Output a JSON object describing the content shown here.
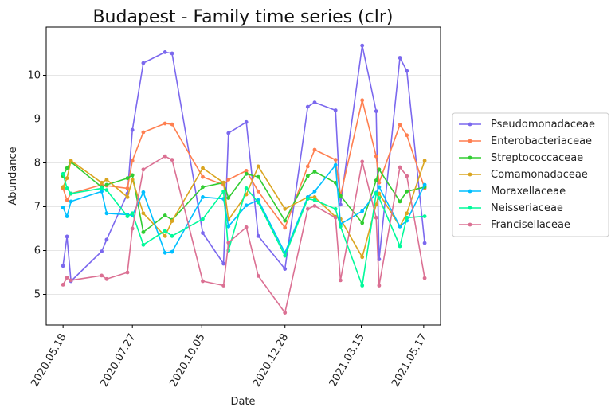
{
  "chart_data": {
    "type": "line",
    "title": "Budapest - Family time series (clr)",
    "xlabel": "Date",
    "ylabel": "Abundance",
    "x_type": "date",
    "xticks": [
      "2020.05.18",
      "2020.07.27",
      "2020.10.05",
      "2020.12.28",
      "2021.03.15",
      "2021.05.17"
    ],
    "yticks": [
      5,
      6,
      7,
      8,
      9,
      10
    ],
    "ylim": [
      4.3,
      11.1
    ],
    "xlim": [
      "2020-05-01",
      "2021-06-03"
    ],
    "grid": "horizontal",
    "legend_position": "right",
    "dates": [
      "2020-05-18",
      "2020-05-22",
      "2020-05-26",
      "2020-06-26",
      "2020-07-01",
      "2020-07-22",
      "2020-07-27",
      "2020-08-07",
      "2020-08-29",
      "2020-09-05",
      "2020-10-06",
      "2020-10-27",
      "2020-11-01",
      "2020-11-19",
      "2020-12-01",
      "2020-12-28",
      "2021-01-20",
      "2021-01-27",
      "2021-02-17",
      "2021-02-22",
      "2021-03-16",
      "2021-03-30",
      "2021-04-02",
      "2021-04-23",
      "2021-04-30",
      "2021-05-18"
    ],
    "series": [
      {
        "name": "Pseudomonadaceae",
        "color": "#7b68ee",
        "values": [
          5.65,
          6.32,
          5.3,
          5.98,
          6.25,
          7.3,
          8.75,
          10.28,
          10.53,
          10.5,
          6.4,
          5.7,
          8.68,
          8.93,
          6.33,
          5.58,
          9.28,
          9.38,
          9.2,
          7.05,
          10.68,
          9.18,
          5.8,
          10.4,
          10.1,
          6.17
        ]
      },
      {
        "name": "Enterobacteriaceae",
        "color": "#ff7f50",
        "values": [
          7.42,
          7.15,
          7.3,
          7.5,
          7.48,
          7.42,
          8.05,
          8.7,
          8.9,
          8.88,
          7.68,
          7.5,
          7.62,
          7.82,
          7.35,
          6.52,
          7.92,
          8.3,
          8.07,
          7.25,
          9.43,
          8.15,
          7.55,
          8.87,
          8.63,
          7.42
        ]
      },
      {
        "name": "Streptococcaceae",
        "color": "#32cd32",
        "values": [
          7.7,
          7.88,
          8.02,
          7.45,
          7.5,
          7.65,
          7.72,
          6.42,
          6.8,
          6.7,
          7.45,
          7.55,
          7.2,
          7.75,
          7.68,
          6.68,
          7.7,
          7.8,
          7.55,
          7.25,
          6.63,
          7.6,
          7.85,
          7.12,
          7.35,
          7.45
        ]
      },
      {
        "name": "Comamonadaceae",
        "color": "#daa520",
        "values": [
          7.45,
          7.65,
          8.05,
          7.55,
          7.62,
          7.22,
          7.62,
          6.85,
          6.33,
          6.67,
          7.88,
          7.55,
          6.7,
          7.28,
          7.92,
          6.95,
          7.22,
          7.22,
          6.77,
          6.72,
          5.85,
          7.05,
          7.3,
          6.55,
          6.85,
          8.05
        ]
      },
      {
        "name": "Moraxellaceae",
        "color": "#00bfff",
        "values": [
          6.98,
          6.78,
          7.12,
          7.35,
          6.85,
          6.82,
          6.8,
          7.33,
          5.95,
          5.97,
          7.22,
          7.18,
          6.55,
          7.03,
          7.15,
          5.95,
          7.22,
          7.35,
          7.95,
          6.6,
          6.9,
          7.32,
          7.45,
          6.55,
          6.68,
          7.5
        ]
      },
      {
        "name": "Neisseriaceae",
        "color": "#00fa9a",
        "values": [
          7.75,
          7.42,
          7.3,
          7.42,
          7.38,
          6.78,
          6.85,
          6.13,
          6.45,
          6.33,
          6.72,
          7.35,
          6.0,
          7.42,
          7.1,
          5.88,
          7.18,
          7.15,
          6.95,
          6.55,
          5.2,
          7.3,
          7.2,
          6.1,
          6.75,
          6.78
        ]
      },
      {
        "name": "Francisellaceae",
        "color": "#db7093",
        "values": [
          5.22,
          5.38,
          5.32,
          5.43,
          5.35,
          5.5,
          6.5,
          7.85,
          8.15,
          8.07,
          5.3,
          5.2,
          6.18,
          6.53,
          5.42,
          4.58,
          6.95,
          7.02,
          6.75,
          5.32,
          8.03,
          6.75,
          5.2,
          7.9,
          7.7,
          5.37
        ]
      }
    ]
  }
}
